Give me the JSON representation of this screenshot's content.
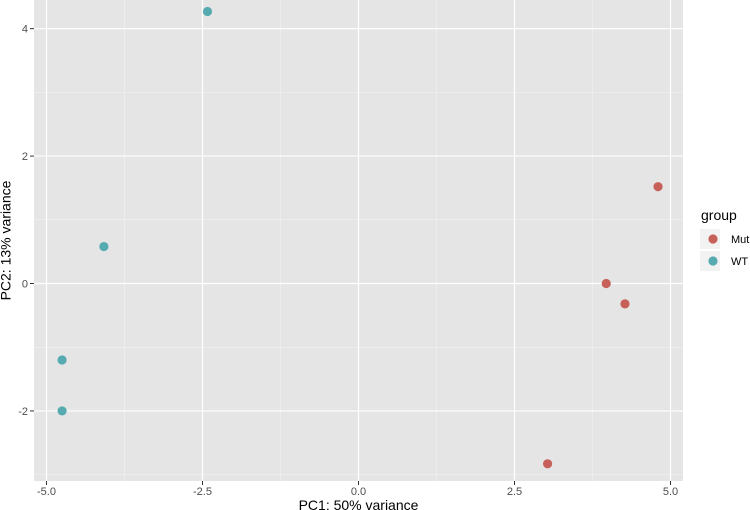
{
  "chart_data": {
    "type": "scatter",
    "xlabel": "PC1: 50% variance",
    "ylabel": "PC2: 13% variance",
    "xlim": [
      -5.2,
      5.2
    ],
    "ylim": [
      -3.1,
      4.45
    ],
    "x_ticks": [
      -5.0,
      -2.5,
      0.0,
      2.5,
      5.0
    ],
    "x_tick_labels": [
      "-5.0",
      "-2.5",
      "0.0",
      "2.5",
      "5.0"
    ],
    "y_ticks": [
      -2,
      0,
      2,
      4
    ],
    "y_tick_labels": [
      "-2",
      "0",
      "2",
      "4"
    ],
    "grid": true,
    "legend": {
      "title": "group",
      "position": "right"
    },
    "series": [
      {
        "name": "Mut",
        "color": "#C8605A",
        "points": [
          {
            "x": 4.8,
            "y": 1.52
          },
          {
            "x": 3.97,
            "y": 0.0
          },
          {
            "x": 4.27,
            "y": -0.32
          },
          {
            "x": 3.03,
            "y": -2.83
          }
        ]
      },
      {
        "name": "WT",
        "color": "#56ABB0",
        "points": [
          {
            "x": -2.42,
            "y": 4.27
          },
          {
            "x": -4.08,
            "y": 0.58
          },
          {
            "x": -4.75,
            "y": -1.2
          },
          {
            "x": -4.75,
            "y": -2.0
          }
        ]
      }
    ]
  }
}
